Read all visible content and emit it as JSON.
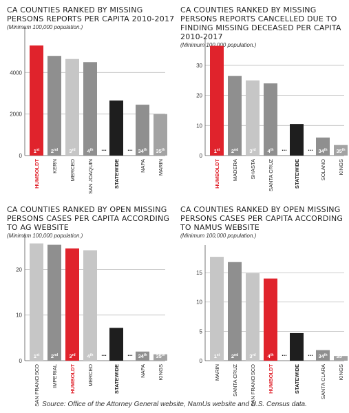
{
  "colors": {
    "highlight": "#e0232c",
    "statewide": "#1e1e1e",
    "dark_gray": "#8f8f8f",
    "mid_gray": "#a3a3a3",
    "light_gray": "#c6c6c6",
    "ellipsis": "#1e1e1e"
  },
  "source": "Source: Office of the Attorney General website, NamUs website and U.S. Census data.",
  "chart_data": [
    {
      "type": "bar",
      "title": "CA COUNTIES RANKED BY MISSING PERSONS REPORTS PER CAPITA 2010-2017",
      "subtitle": "(Minimum 100,000 population.)",
      "categories": [
        "HUMBOLDT",
        "KERN",
        "MERCED",
        "SAN JOAQUIN",
        "STATEWIDE",
        "NAPA",
        "MARIN"
      ],
      "ranks": [
        [
          "1",
          "st"
        ],
        [
          "2",
          "nd"
        ],
        [
          "3",
          "rd"
        ],
        [
          "4",
          "th"
        ],
        [
          "",
          ""
        ],
        [
          "34",
          "th"
        ],
        [
          "35",
          "th"
        ]
      ],
      "values": [
        5300,
        4800,
        4650,
        4500,
        2650,
        2450,
        2000
      ],
      "colors": [
        "highlight",
        "dark_gray",
        "light_gray",
        "dark_gray",
        "statewide",
        "dark_gray",
        "mid_gray"
      ],
      "ylim": [
        0,
        6000
      ],
      "yticks": [
        0,
        2000,
        4000
      ],
      "ellipsis": [
        4,
        5
      ],
      "grid": true
    },
    {
      "type": "bar",
      "title": "CA COUNTIES RANKED BY MISSING PERSONS REPORTS CANCELLED DUE TO FINDING MISSING DECEASED PER CAPITA 2010-2017",
      "subtitle": "(Minimum 100,000 population.)",
      "categories": [
        "HUMBOLDT",
        "MADERA",
        "SHASTA",
        "SANTA CRUZ",
        "STATEWIDE",
        "SOLANO",
        "KINGS"
      ],
      "ranks": [
        [
          "1",
          "st"
        ],
        [
          "2",
          "nd"
        ],
        [
          "3",
          "rd"
        ],
        [
          "4",
          "th"
        ],
        [
          "",
          ""
        ],
        [
          "34",
          "th"
        ],
        [
          "35",
          "th"
        ]
      ],
      "values": [
        36.5,
        26.5,
        25,
        24,
        10.5,
        6,
        3.5
      ],
      "colors": [
        "highlight",
        "dark_gray",
        "light_gray",
        "dark_gray",
        "statewide",
        "dark_gray",
        "mid_gray"
      ],
      "ylim": [
        0,
        38
      ],
      "yticks": [
        0,
        10,
        20,
        30
      ],
      "ellipsis": [
        4,
        5
      ],
      "grid": true
    },
    {
      "type": "bar",
      "title": "CA COUNTIES RANKED BY OPEN MISSING PERSONS CASES PER CAPITA ACCORDING TO AG WEBSITE",
      "subtitle": "(Minimum 100,000 population.)",
      "categories": [
        "SAN FRANCISCO",
        "IMPERIAL",
        "HUMBOLDT",
        "MERCED",
        "STATEWIDE",
        "NAPA",
        "KINGS"
      ],
      "ranks": [
        [
          "1",
          "st"
        ],
        [
          "2",
          "nd"
        ],
        [
          "3",
          "rd"
        ],
        [
          "4",
          "th"
        ],
        [
          "",
          ""
        ],
        [
          "34",
          "th"
        ],
        [
          "35",
          "th"
        ]
      ],
      "values": [
        25.7,
        25.4,
        24.6,
        24.2,
        7.2,
        2.0,
        1.4
      ],
      "colors": [
        "light_gray",
        "dark_gray",
        "highlight",
        "light_gray",
        "statewide",
        "dark_gray",
        "mid_gray"
      ],
      "ylim": [
        0,
        27
      ],
      "yticks": [
        0,
        10,
        20
      ],
      "ellipsis": [
        4,
        5
      ],
      "grid": true
    },
    {
      "type": "bar",
      "title": "CA COUNTIES RANKED BY OPEN MISSING PERSONS CASES PER CAPITA ACCORDING TO NAMUS WEBSITE",
      "subtitle": "(Minimum 100,000 population.)",
      "categories": [
        "MARIN",
        "SANTA CRUZ",
        "SAN FRANCISCO",
        "HUMBOLDT",
        "STATEWIDE",
        "SANTA CLARA",
        "KINGS"
      ],
      "ranks": [
        [
          "1",
          "st"
        ],
        [
          "2",
          "nd"
        ],
        [
          "3",
          "rd"
        ],
        [
          "4",
          "th"
        ],
        [
          "",
          ""
        ],
        [
          "34",
          "th"
        ],
        [
          "35",
          "th"
        ]
      ],
      "values": [
        17.7,
        16.8,
        14.9,
        14.0,
        4.7,
        1.8,
        0.8
      ],
      "colors": [
        "light_gray",
        "dark_gray",
        "light_gray",
        "highlight",
        "statewide",
        "dark_gray",
        "mid_gray"
      ],
      "ylim": [
        0,
        19
      ],
      "yticks": [
        0,
        5,
        10,
        15
      ],
      "ellipsis": [
        4,
        5
      ],
      "grid": true
    }
  ]
}
